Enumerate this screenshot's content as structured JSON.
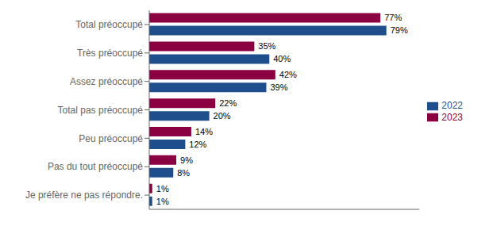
{
  "chart_data": {
    "type": "bar",
    "orientation": "horizontal",
    "categories": [
      "Je préfère ne pas répondre.",
      "Pas du tout préoccupé",
      "Peu préoccupé",
      "Total pas préoccupé",
      "Assez préoccupé",
      "Très préoccupé",
      "Total préoccupé"
    ],
    "series": [
      {
        "name": "2023",
        "color": "#8B0040",
        "values": [
          1,
          9,
          14,
          22,
          42,
          35,
          77
        ],
        "value_labels": [
          "1%",
          "9%",
          "14%",
          "22%",
          "42%",
          "35%",
          "77%"
        ]
      },
      {
        "name": "2022",
        "color": "#1F4E8C",
        "values": [
          1,
          8,
          12,
          20,
          39,
          40,
          79
        ],
        "value_labels": [
          "1%",
          "8%",
          "12%",
          "20%",
          "39%",
          "40%",
          "79%"
        ]
      }
    ],
    "xlim": [
      0,
      90
    ],
    "tick_labels": "y",
    "grid": false,
    "legend": "right",
    "data_labels": true
  }
}
